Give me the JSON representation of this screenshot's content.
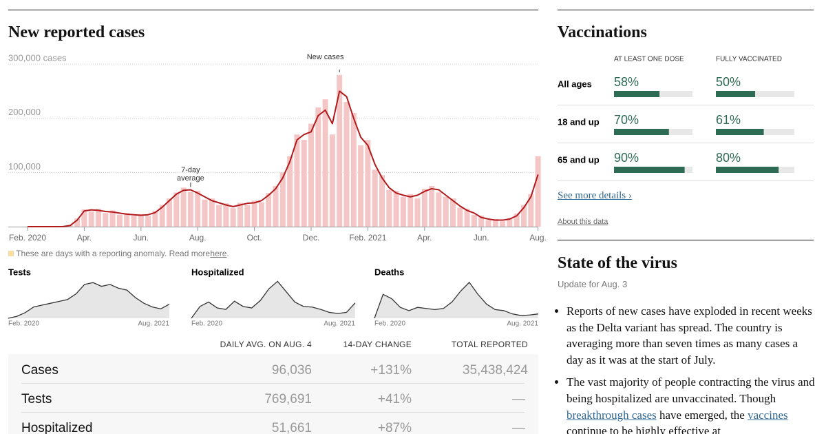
{
  "chart_data": [
    {
      "type": "bar",
      "title": "New reported cases",
      "categories": [
        "Feb. 2020",
        null,
        null,
        null,
        null,
        null,
        null,
        null,
        "Apr.",
        null,
        null,
        null,
        null,
        null,
        null,
        null,
        "Jun.",
        null,
        null,
        null,
        null,
        null,
        null,
        null,
        "Aug.",
        null,
        null,
        null,
        null,
        null,
        null,
        null,
        "Oct.",
        null,
        null,
        null,
        null,
        null,
        null,
        null,
        "Dec.",
        null,
        null,
        null,
        null,
        null,
        null,
        null,
        "Feb. 2021",
        null,
        null,
        null,
        null,
        null,
        null,
        null,
        "Apr.",
        null,
        null,
        null,
        null,
        null,
        null,
        null,
        "Jun.",
        null,
        null,
        null,
        null,
        null,
        null,
        null,
        "Aug."
      ],
      "series": [
        {
          "name": "New cases",
          "kind": "bar",
          "color": "#f5c6c6",
          "values": [
            0,
            0,
            0,
            0,
            0,
            200,
            3000,
            15000,
            32000,
            28000,
            33000,
            25000,
            30000,
            22000,
            25000,
            20000,
            23000,
            20000,
            29000,
            40000,
            52000,
            63000,
            72000,
            64000,
            66000,
            50000,
            52000,
            40000,
            43000,
            34000,
            44000,
            40000,
            48000,
            45000,
            62000,
            75000,
            100000,
            130000,
            170000,
            160000,
            190000,
            220000,
            235000,
            170000,
            280000,
            230000,
            210000,
            150000,
            160000,
            105000,
            95000,
            68000,
            66000,
            55000,
            60000,
            52000,
            70000,
            75000,
            63000,
            55000,
            52000,
            35000,
            33000,
            22000,
            20000,
            12000,
            14000,
            10000,
            16000,
            24000,
            40000,
            60000,
            130000
          ]
        },
        {
          "name": "7-day average",
          "kind": "line",
          "color": "#b1191b",
          "values": [
            0,
            0,
            0,
            0,
            0,
            100,
            2000,
            12000,
            29000,
            31000,
            30000,
            28000,
            27000,
            25000,
            23000,
            22000,
            21000,
            22000,
            26000,
            36000,
            48000,
            60000,
            67000,
            68000,
            62000,
            55000,
            48000,
            44000,
            40000,
            37000,
            40000,
            43000,
            44000,
            48000,
            58000,
            70000,
            90000,
            120000,
            160000,
            170000,
            175000,
            205000,
            215000,
            190000,
            250000,
            240000,
            200000,
            165000,
            150000,
            115000,
            90000,
            72000,
            62000,
            58000,
            55000,
            58000,
            65000,
            70000,
            68000,
            58000,
            48000,
            38000,
            30000,
            25000,
            17000,
            14000,
            12000,
            12000,
            14000,
            20000,
            35000,
            55000,
            96000
          ]
        }
      ],
      "ylim": [
        0,
        300000
      ],
      "yticks": [
        {
          "value": 100000,
          "label": "100,000"
        },
        {
          "value": 200000,
          "label": "200,000"
        },
        {
          "value": 300000,
          "label": "300,000 cases"
        }
      ],
      "grid": true
    },
    {
      "type": "area",
      "title": "Tests",
      "color": "#333333",
      "fill": "#e6e6e6",
      "categories": [
        "Feb. 2020",
        null,
        null,
        null,
        null,
        null,
        null,
        null,
        null,
        null,
        null,
        null,
        null,
        null,
        null,
        null,
        null,
        null,
        null,
        "Aug. 2021"
      ],
      "values": [
        0,
        100000,
        300000,
        600000,
        700000,
        800000,
        900000,
        1000000,
        1300000,
        1800000,
        1900000,
        1700000,
        1800000,
        1600000,
        1500000,
        1100000,
        800000,
        600000,
        500000,
        750000
      ],
      "ylim": [
        0,
        2200000
      ]
    },
    {
      "type": "area",
      "title": "Hospitalized",
      "color": "#333333",
      "fill": "#e6e6e6",
      "categories": [
        "Feb. 2020",
        null,
        null,
        null,
        null,
        null,
        null,
        null,
        null,
        null,
        null,
        null,
        null,
        null,
        null,
        null,
        null,
        null,
        null,
        "Aug. 2021"
      ],
      "values": [
        0,
        40000,
        55000,
        35000,
        30000,
        58000,
        40000,
        35000,
        60000,
        100000,
        125000,
        90000,
        55000,
        40000,
        38000,
        30000,
        20000,
        16000,
        20000,
        52000
      ],
      "ylim": [
        0,
        140000
      ]
    },
    {
      "type": "area",
      "title": "Deaths",
      "color": "#333333",
      "fill": "#e6e6e6",
      "categories": [
        "Feb. 2020",
        null,
        null,
        null,
        null,
        null,
        null,
        null,
        null,
        null,
        null,
        null,
        null,
        null,
        null,
        null,
        null,
        null,
        null,
        "Aug. 2021"
      ],
      "values": [
        0,
        2200,
        1800,
        1000,
        700,
        1000,
        900,
        800,
        900,
        1500,
        2500,
        3300,
        2200,
        1300,
        800,
        700,
        400,
        250,
        300,
        400
      ],
      "ylim": [
        0,
        3800
      ]
    },
    {
      "type": "progress",
      "title": "Vaccinations",
      "categories": [
        "All ages",
        "18 and up",
        "65 and up"
      ],
      "series": [
        {
          "name": "AT LEAST ONE DOSE",
          "color": "#2e6b55",
          "values": [
            58,
            70,
            90
          ],
          "value_labels": [
            "58%",
            "70%",
            "90%"
          ]
        },
        {
          "name": "FULLY VACCINATED",
          "color": "#2e6b55",
          "values": [
            50,
            61,
            80
          ],
          "value_labels": [
            "50%",
            "61%",
            "80%"
          ]
        }
      ],
      "xlim": [
        0,
        100
      ]
    }
  ],
  "anomaly_note": {
    "color": "#f7dca0",
    "text": "These are days with a reporting anomaly. Read more",
    "link": "here",
    "end": "."
  },
  "table": {
    "columns": [
      "DAILY AVG. ON AUG. 4",
      "14-DAY CHANGE",
      "TOTAL REPORTED"
    ],
    "rows": [
      [
        "Cases",
        "96,036",
        "+131%",
        "35,438,424"
      ],
      [
        "Tests",
        "769,691",
        "+41%",
        "—"
      ],
      [
        "Hospitalized",
        "51,661",
        "+87%",
        "—"
      ]
    ]
  },
  "sidebar": {
    "see_more": "See more details ›",
    "about": "About this data",
    "virus_title": "State of the virus",
    "update": "Update for Aug. 3",
    "bullets": [
      [
        {
          "text": "Reports of new cases have exploded in recent weeks as the Delta variant has spread. The country is averaging more than seven times as many cases a day as it was at the start of July."
        }
      ],
      [
        {
          "text": "The vast majority of people contracting the virus and being hospitalized are unvaccinated. Though "
        },
        {
          "text": "breakthrough cases",
          "link": true
        },
        {
          "text": " have emerged, the "
        },
        {
          "text": "vaccines",
          "link": true
        },
        {
          "text": " continue to be highly effective at"
        }
      ]
    ]
  }
}
